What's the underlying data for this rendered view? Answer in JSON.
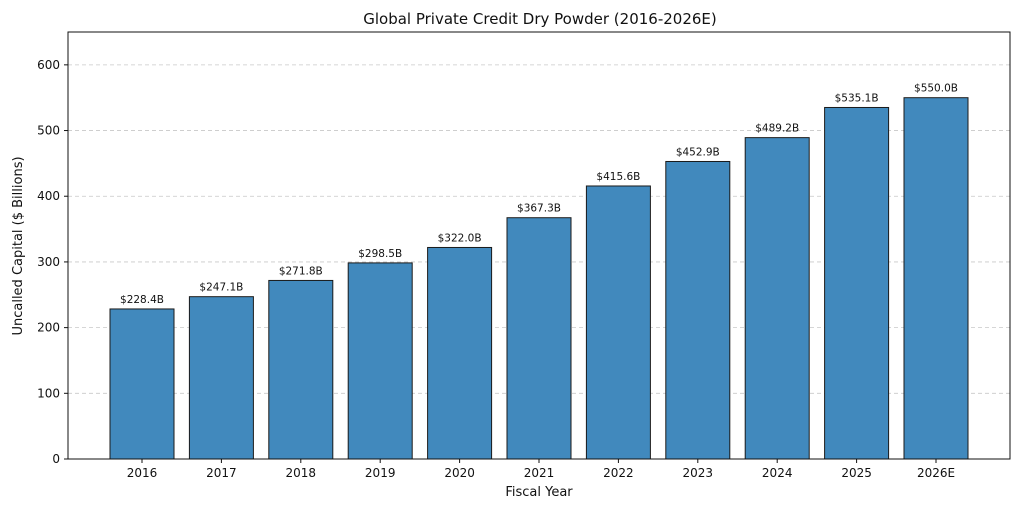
{
  "chart_data": {
    "type": "bar",
    "title": "Global Private Credit Dry Powder (2016-2026E)",
    "xlabel": "Fiscal Year",
    "ylabel": "Uncalled Capital ($ Billions)",
    "categories": [
      "2016",
      "2017",
      "2018",
      "2019",
      "2020",
      "2021",
      "2022",
      "2023",
      "2024",
      "2025",
      "2026E"
    ],
    "values": [
      228.4,
      247.1,
      271.8,
      298.5,
      322.0,
      367.3,
      415.6,
      452.9,
      489.2,
      535.1,
      550.0
    ],
    "data_labels": [
      "$228.4B",
      "$247.1B",
      "$271.8B",
      "$298.5B",
      "$322.0B",
      "$367.3B",
      "$415.6B",
      "$452.9B",
      "$489.2B",
      "$535.1B",
      "$550.0B"
    ],
    "ylim": [
      0,
      650
    ],
    "yticks": [
      0,
      100,
      200,
      300,
      400,
      500,
      600
    ],
    "grid": true,
    "bar_color": "#4189bd",
    "legend": "none"
  }
}
